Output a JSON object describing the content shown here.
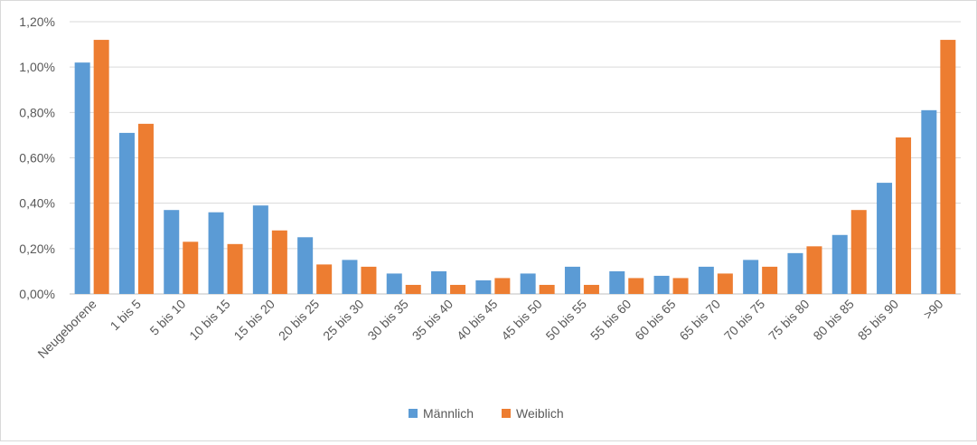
{
  "chart_data": {
    "type": "bar",
    "categories": [
      "Neugeborene",
      "1 bis 5",
      "5 bis 10",
      "10 bis 15",
      "15 bis 20",
      "20 bis 25",
      "25 bis 30",
      "30 bis 35",
      "35 bis 40",
      "40 bis 45",
      "45 bis 50",
      "50 bis 55",
      "55 bis 60",
      "60 bis 65",
      "65 bis 70",
      "70 bis 75",
      "75 bis 80",
      "80 bis 85",
      "85 bis 90",
      ">90"
    ],
    "series": [
      {
        "name": "Männlich",
        "color": "#5B9BD5",
        "values": [
          1.02,
          0.71,
          0.37,
          0.36,
          0.39,
          0.25,
          0.15,
          0.09,
          0.1,
          0.06,
          0.09,
          0.12,
          0.1,
          0.08,
          0.12,
          0.15,
          0.18,
          0.26,
          0.49,
          0.81
        ]
      },
      {
        "name": "Weiblich",
        "color": "#ED7D31",
        "values": [
          1.12,
          0.75,
          0.23,
          0.22,
          0.28,
          0.13,
          0.12,
          0.04,
          0.04,
          0.07,
          0.04,
          0.04,
          0.07,
          0.07,
          0.09,
          0.12,
          0.21,
          0.37,
          0.69,
          1.12
        ]
      }
    ],
    "y_ticks": [
      "0,00%",
      "0,20%",
      "0,40%",
      "0,60%",
      "0,80%",
      "1,00%",
      "1,20%"
    ],
    "ylim": [
      0,
      1.2
    ],
    "unit": "%",
    "grid": true,
    "legend_position": "bottom"
  }
}
